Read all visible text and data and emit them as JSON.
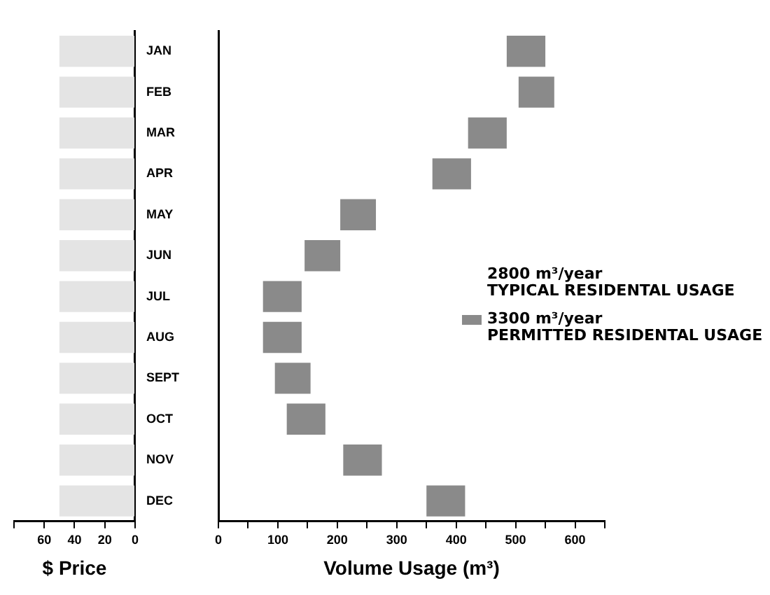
{
  "chart_data": [
    {
      "type": "bar",
      "orientation": "horizontal",
      "xlabel": "$ Price",
      "categories": [
        "JAN",
        "FEB",
        "MAR",
        "APR",
        "MAY",
        "JUN",
        "JUL",
        "AUG",
        "SEPT",
        "OCT",
        "NOV",
        "DEC"
      ],
      "values": [
        50,
        50,
        50,
        50,
        50,
        50,
        50,
        50,
        50,
        50,
        50,
        50
      ],
      "color": "#e4e4e4",
      "xlim": [
        80,
        0
      ],
      "xticks": [
        {
          "value": 80,
          "label": null
        },
        60,
        40,
        20,
        0
      ],
      "grid": false
    },
    {
      "type": "bar",
      "orientation": "horizontal",
      "xlabel": "Volume Usage (m³)",
      "categories": [
        null,
        null,
        null,
        null,
        null,
        null,
        null,
        null,
        null,
        null,
        null,
        null
      ],
      "series": [
        {
          "name": "3300 m³/year\nPERMITTED RESIDENTAL USAGE",
          "color": "#8a8a8a",
          "base": [
            485,
            505,
            420,
            360,
            205,
            145,
            75,
            75,
            95,
            115,
            210,
            350
          ],
          "values": [
            65,
            60,
            65,
            65,
            60,
            60,
            65,
            65,
            60,
            65,
            65,
            65
          ]
        }
      ],
      "xlim": [
        0,
        650
      ],
      "xticks": [
        0,
        {
          "value": 50,
          "label": null
        },
        100,
        {
          "value": 150,
          "label": null
        },
        200,
        {
          "value": 250,
          "label": null
        },
        300,
        {
          "value": 350,
          "label": null
        },
        400,
        {
          "value": 450,
          "label": null
        },
        500,
        {
          "value": 550,
          "label": null
        },
        600,
        {
          "value": 650,
          "label": null
        }
      ],
      "annotations": [
        "2800 m³/year\nTYPICAL RESIDENTAL USAGE"
      ],
      "legend": "right",
      "grid": false
    }
  ]
}
